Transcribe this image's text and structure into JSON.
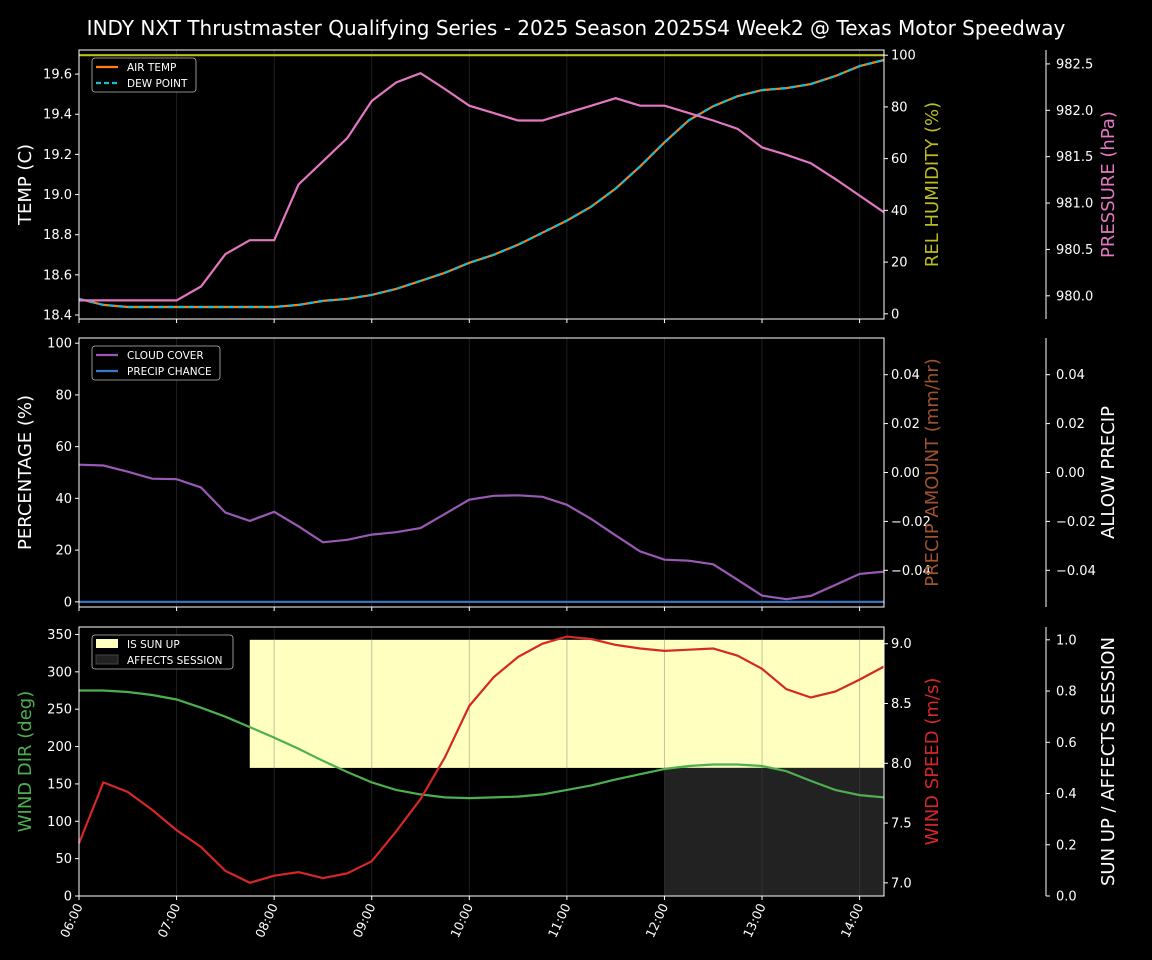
{
  "title": "INDY NXT Thrustmaster Qualifying Series - 2025 Season 2025S4 Week2 @ Texas Motor Speedway",
  "colors": {
    "air_temp": "#ff7f0e",
    "dew_point": "#17becf",
    "humidity": "#bcbd22",
    "pressure": "#e377c2",
    "cloud": "#9b59b6",
    "precip_chance": "#3a78c9",
    "precip_amount": "#a0522d",
    "wind_dir": "#4caf50",
    "wind_speed": "#d62728",
    "sun_up": "#ffffc0",
    "affects": "#222222",
    "axis": "#ffffff"
  },
  "x_ticks": [
    "06:00",
    "07:00",
    "08:00",
    "09:00",
    "10:00",
    "11:00",
    "12:00",
    "13:00",
    "14:00"
  ],
  "chart_data": [
    {
      "type": "line",
      "panel": "temperature",
      "x_hours": [
        6,
        6.25,
        6.5,
        6.75,
        7,
        7.25,
        7.5,
        7.75,
        8,
        8.25,
        8.5,
        8.75,
        9,
        9.25,
        9.5,
        9.75,
        10,
        10.25,
        10.5,
        10.75,
        11,
        11.25,
        11.5,
        11.75,
        12,
        12.25,
        12.5,
        12.75,
        13,
        13.25,
        13.5,
        13.75,
        14,
        14.25
      ],
      "xlim": [
        6,
        14.25
      ],
      "ylabel": "TEMP (C)",
      "ylim": [
        18.38,
        19.72
      ],
      "yticks": [
        "18.4",
        "18.6",
        "18.8",
        "19.0",
        "19.2",
        "19.4",
        "19.6"
      ],
      "y2label": "REL HUMIDITY (%)",
      "y2lim": [
        -2,
        102
      ],
      "y2ticks": [
        "0",
        "20",
        "40",
        "60",
        "80",
        "100"
      ],
      "y3label": "PRESSURE (hPa)",
      "y3lim": [
        979.75,
        982.65
      ],
      "y3ticks": [
        "980.0",
        "980.5",
        "981.0",
        "981.5",
        "982.0",
        "982.5"
      ],
      "series": [
        {
          "name": "AIR TEMP",
          "axis": "y",
          "style": "solid",
          "values": [
            18.48,
            18.45,
            18.44,
            18.44,
            18.44,
            18.44,
            18.44,
            18.44,
            18.44,
            18.45,
            18.47,
            18.48,
            18.5,
            18.53,
            18.57,
            18.61,
            18.66,
            18.7,
            18.75,
            18.81,
            18.87,
            18.94,
            19.03,
            19.14,
            19.26,
            19.37,
            19.44,
            19.49,
            19.52,
            19.53,
            19.55,
            19.59,
            19.64,
            19.67
          ]
        },
        {
          "name": "DEW POINT",
          "axis": "y",
          "style": "dashed",
          "values": [
            18.48,
            18.45,
            18.44,
            18.44,
            18.44,
            18.44,
            18.44,
            18.44,
            18.44,
            18.45,
            18.47,
            18.48,
            18.5,
            18.53,
            18.57,
            18.61,
            18.66,
            18.7,
            18.75,
            18.81,
            18.87,
            18.94,
            19.03,
            19.14,
            19.26,
            19.37,
            19.44,
            19.49,
            19.52,
            19.53,
            19.55,
            19.59,
            19.64,
            19.67
          ]
        },
        {
          "name": "",
          "axis": "y2",
          "style": "solid",
          "values": [
            100,
            100,
            100,
            100,
            100,
            100,
            100,
            100,
            100,
            100,
            100,
            100,
            100,
            100,
            100,
            100,
            100,
            100,
            100,
            100,
            100,
            100,
            100,
            100,
            100,
            100,
            100,
            100,
            100,
            100,
            100,
            100,
            100,
            100
          ]
        },
        {
          "name": "",
          "axis": "y3",
          "style": "solid",
          "values": [
            979.95,
            979.95,
            979.95,
            979.95,
            979.95,
            980.1,
            980.45,
            980.6,
            980.6,
            981.2,
            981.45,
            981.7,
            982.1,
            982.3,
            982.4,
            982.23,
            982.05,
            981.97,
            981.89,
            981.89,
            981.97,
            982.05,
            982.13,
            982.05,
            982.05,
            981.97,
            981.89,
            981.8,
            981.6,
            981.52,
            981.43,
            981.26,
            981.08,
            980.9
          ]
        }
      ],
      "legend": "top-left"
    },
    {
      "type": "line",
      "panel": "clouds",
      "x_hours": [
        6,
        6.25,
        6.5,
        6.75,
        7,
        7.25,
        7.5,
        7.75,
        8,
        8.25,
        8.5,
        8.75,
        9,
        9.25,
        9.5,
        9.75,
        10,
        10.25,
        10.5,
        10.75,
        11,
        11.25,
        11.5,
        11.75,
        12,
        12.25,
        12.5,
        12.75,
        13,
        13.25,
        13.5,
        13.75,
        14,
        14.25
      ],
      "xlim": [
        6,
        14.25
      ],
      "ylabel": "PERCENTAGE (%)",
      "ylim": [
        -2,
        102
      ],
      "yticks": [
        "0",
        "20",
        "40",
        "60",
        "80",
        "100"
      ],
      "y2label": "PRECIP AMOUNT (mm/hr)",
      "y2lim": [
        -0.055,
        0.055
      ],
      "y2ticks": [
        "−0.04",
        "−0.02",
        "0.00",
        "0.02",
        "0.04"
      ],
      "y3label": "ALLOW PRECIP",
      "y3lim": [
        -0.055,
        0.055
      ],
      "y3ticks": [
        "−0.04",
        "−0.02",
        "0.00",
        "0.02",
        "0.04"
      ],
      "series": [
        {
          "name": "CLOUD COVER",
          "axis": "y",
          "values": [
            53,
            52.7,
            50.3,
            47.6,
            47.4,
            44.2,
            34.5,
            31.3,
            34.8,
            29.2,
            23,
            24,
            26,
            26.9,
            28.5,
            34,
            39.5,
            41,
            41.2,
            40.6,
            37.5,
            32,
            25.7,
            19.5,
            16.3,
            15.9,
            14.5,
            8.5,
            2.4,
            1,
            2.3,
            6.5,
            10.8,
            11.7
          ]
        },
        {
          "name": "PRECIP CHANCE",
          "axis": "y",
          "values": [
            0,
            0,
            0,
            0,
            0,
            0,
            0,
            0,
            0,
            0,
            0,
            0,
            0,
            0,
            0,
            0,
            0,
            0,
            0,
            0,
            0,
            0,
            0,
            0,
            0,
            0,
            0,
            0,
            0,
            0,
            0,
            0,
            0,
            0
          ]
        }
      ],
      "legend": "top-left"
    },
    {
      "type": "line",
      "panel": "wind",
      "x_hours": [
        6,
        6.25,
        6.5,
        6.75,
        7,
        7.25,
        7.5,
        7.75,
        8,
        8.25,
        8.5,
        8.75,
        9,
        9.25,
        9.5,
        9.75,
        10,
        10.25,
        10.5,
        10.75,
        11,
        11.25,
        11.5,
        11.75,
        12,
        12.25,
        12.5,
        12.75,
        13,
        13.25,
        13.5,
        13.75,
        14,
        14.25
      ],
      "xlim": [
        6,
        14.25
      ],
      "ylabel": "WIND DIR (deg)",
      "ylim": [
        0,
        360
      ],
      "yticks": [
        "0",
        "50",
        "100",
        "150",
        "200",
        "250",
        "300",
        "350"
      ],
      "y2label": "WIND SPEED (m/s)",
      "y2lim": [
        6.89,
        9.14
      ],
      "y2ticks": [
        "7.0",
        "7.5",
        "8.0",
        "8.5",
        "9.0"
      ],
      "y3label": "SUN UP / AFFECTS SESSION",
      "y3lim": [
        0,
        1.05
      ],
      "y3ticks": [
        "0.0",
        "0.2",
        "0.4",
        "0.6",
        "0.8",
        "1.0"
      ],
      "series": [
        {
          "name": "",
          "axis": "y",
          "values": [
            275,
            275,
            273,
            269,
            263,
            252,
            240,
            226,
            212,
            197,
            181,
            166,
            152,
            142,
            136,
            132,
            131,
            132,
            133,
            136,
            142,
            148,
            156,
            163,
            170,
            174,
            176,
            176,
            174,
            167,
            154,
            142,
            135,
            132
          ]
        },
        {
          "name": "",
          "axis": "y2",
          "values": [
            7.33,
            7.84,
            7.76,
            7.61,
            7.44,
            7.3,
            7.1,
            7.0,
            7.06,
            7.09,
            7.04,
            7.08,
            7.18,
            7.43,
            7.7,
            8.05,
            8.48,
            8.72,
            8.89,
            9.0,
            9.06,
            9.04,
            8.99,
            8.96,
            8.94,
            8.95,
            8.96,
            8.9,
            8.79,
            8.62,
            8.55,
            8.6,
            8.7,
            8.81
          ]
        }
      ],
      "bands": [
        {
          "name": "IS SUN UP",
          "x_start": 7.75,
          "x_end": 14.25,
          "y_min": 0.5,
          "y_max": 1.0
        },
        {
          "name": "AFFECTS SESSION",
          "x_start": 12.0,
          "x_end": 14.25,
          "y_min": 0.0,
          "y_max": 0.5
        }
      ],
      "legend": "top-left"
    }
  ]
}
